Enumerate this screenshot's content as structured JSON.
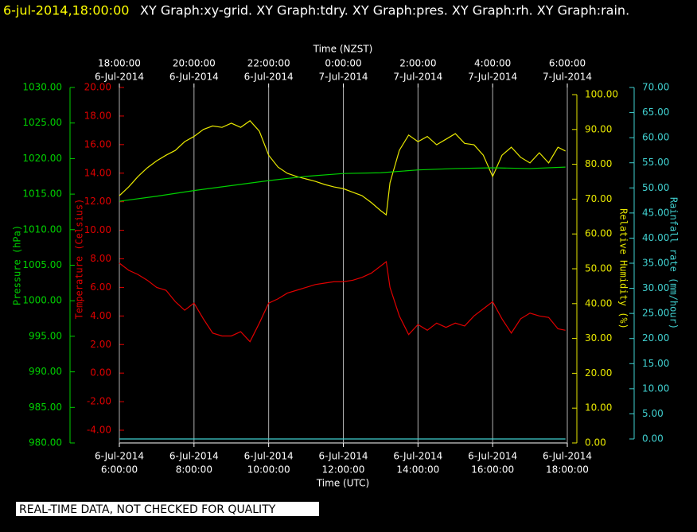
{
  "chart_data": {
    "type": "line",
    "title": "6-jul-2014,18:00:00",
    "subtitle": "XY Graph:xy-grid.  XY Graph:tdry.  XY Graph:pres.  XY Graph:rh.  XY Graph:rain.",
    "footer": "REAL-TIME DATA, NOT CHECKED FOR QUALITY",
    "xlabel": "Time (UTC)",
    "x2label": "Time (NZST)",
    "xlim": [
      6,
      18
    ],
    "xticks": [
      {
        "value": 6,
        "label": [
          "6-Jul-2014",
          "6:00:00"
        ]
      },
      {
        "value": 8,
        "label": [
          "6-Jul-2014",
          "8:00:00"
        ]
      },
      {
        "value": 10,
        "label": [
          "6-Jul-2014",
          "10:00:00"
        ]
      },
      {
        "value": 12,
        "label": [
          "6-Jul-2014",
          "12:00:00"
        ]
      },
      {
        "value": 14,
        "label": [
          "6-Jul-2014",
          "14:00:00"
        ]
      },
      {
        "value": 16,
        "label": [
          "6-Jul-2014",
          "16:00:00"
        ]
      },
      {
        "value": 18,
        "label": [
          "6-Jul-2014",
          "18:00:00"
        ]
      }
    ],
    "x2ticks": [
      {
        "value": 6,
        "label": [
          "18:00:00",
          "6-Jul-2014"
        ]
      },
      {
        "value": 8,
        "label": [
          "20:00:00",
          "6-Jul-2014"
        ]
      },
      {
        "value": 10,
        "label": [
          "22:00:00",
          "6-Jul-2014"
        ]
      },
      {
        "value": 12,
        "label": [
          "0:00:00",
          "7-Jul-2014"
        ]
      },
      {
        "value": 14,
        "label": [
          "2:00:00",
          "7-Jul-2014"
        ]
      },
      {
        "value": 16,
        "label": [
          "4:00:00",
          "7-Jul-2014"
        ]
      },
      {
        "value": 18,
        "label": [
          "6:00:00",
          "7-Jul-2014"
        ]
      }
    ],
    "grid": true,
    "axes": [
      {
        "key": "y",
        "label": "Pressure (hPa)",
        "color": "#00d000",
        "lim": [
          980,
          1030
        ],
        "ticks": [
          {
            "value": 980,
            "label": "980.00"
          },
          {
            "value": 985,
            "label": "985.00"
          },
          {
            "value": 990,
            "label": "990.00"
          },
          {
            "value": 995,
            "label": "995.00"
          },
          {
            "value": 1000,
            "label": "1000.00"
          },
          {
            "value": 1005,
            "label": "1005.00"
          },
          {
            "value": 1010,
            "label": "1010.00"
          },
          {
            "value": 1015,
            "label": "1015.00"
          },
          {
            "value": 1020,
            "label": "1020.00"
          },
          {
            "value": 1025,
            "label": "1025.00"
          },
          {
            "value": 1030,
            "label": "1030.00"
          }
        ]
      },
      {
        "key": "y2",
        "label": "Temperature (Celsius)",
        "color": "#e00000",
        "lim": [
          -4,
          20
        ],
        "ticks": [
          {
            "value": -4,
            "label": "-4.00"
          },
          {
            "value": -2,
            "label": "-2.00"
          },
          {
            "value": 0,
            "label": "0.00"
          },
          {
            "value": 2,
            "label": "2.00"
          },
          {
            "value": 4,
            "label": "4.00"
          },
          {
            "value": 6,
            "label": "6.00"
          },
          {
            "value": 8,
            "label": "8.00"
          },
          {
            "value": 10,
            "label": "10.00"
          },
          {
            "value": 12,
            "label": "12.00"
          },
          {
            "value": 14,
            "label": "14.00"
          },
          {
            "value": 16,
            "label": "16.00"
          },
          {
            "value": 18,
            "label": "18.00"
          },
          {
            "value": 20,
            "label": "20.00"
          }
        ]
      },
      {
        "key": "y3",
        "label": "Relative Humidity (%)",
        "color": "#e8e800",
        "lim": [
          0,
          100
        ],
        "ticks": [
          {
            "value": 0,
            "label": "0.00"
          },
          {
            "value": 10,
            "label": "10.00"
          },
          {
            "value": 20,
            "label": "20.00"
          },
          {
            "value": 30,
            "label": "30.00"
          },
          {
            "value": 40,
            "label": "40.00"
          },
          {
            "value": 50,
            "label": "50.00"
          },
          {
            "value": 60,
            "label": "60.00"
          },
          {
            "value": 70,
            "label": "70.00"
          },
          {
            "value": 80,
            "label": "80.00"
          },
          {
            "value": 90,
            "label": "90.00"
          },
          {
            "value": 100,
            "label": "100.00"
          }
        ]
      },
      {
        "key": "y4",
        "label": "Rainfall rate (mm/hour)",
        "color": "#40d0d0",
        "lim": [
          0,
          70
        ],
        "ticks": [
          {
            "value": 0,
            "label": "0.00"
          },
          {
            "value": 5,
            "label": "5.00"
          },
          {
            "value": 10,
            "label": "10.00"
          },
          {
            "value": 15,
            "label": "15.00"
          },
          {
            "value": 20,
            "label": "20.00"
          },
          {
            "value": 25,
            "label": "25.00"
          },
          {
            "value": 30,
            "label": "30.00"
          },
          {
            "value": 35,
            "label": "35.00"
          },
          {
            "value": 40,
            "label": "40.00"
          },
          {
            "value": 45,
            "label": "45.00"
          },
          {
            "value": 50,
            "label": "50.00"
          },
          {
            "value": 55,
            "label": "55.00"
          },
          {
            "value": 60,
            "label": "60.00"
          },
          {
            "value": 65,
            "label": "65.00"
          },
          {
            "value": 70,
            "label": "70.00"
          }
        ]
      }
    ],
    "series": [
      {
        "name": "tdry",
        "axis": "y2",
        "color": "#e00000",
        "x": [
          6,
          6.25,
          6.5,
          6.75,
          7,
          7.25,
          7.5,
          7.75,
          8,
          8.25,
          8.5,
          8.75,
          9,
          9.25,
          9.5,
          9.75,
          10,
          10.25,
          10.5,
          10.75,
          11,
          11.25,
          11.5,
          11.75,
          12,
          12.25,
          12.5,
          12.75,
          13,
          13.15,
          13.25,
          13.5,
          13.75,
          14,
          14.25,
          14.5,
          14.75,
          15,
          15.25,
          15.5,
          15.75,
          16,
          16.25,
          16.5,
          16.75,
          17,
          17.25,
          17.5,
          17.75,
          17.95
        ],
        "values": [
          7.7,
          7.2,
          6.9,
          6.5,
          6.0,
          5.8,
          5.0,
          4.4,
          4.9,
          3.8,
          2.8,
          2.6,
          2.6,
          2.9,
          2.2,
          3.5,
          4.9,
          5.2,
          5.6,
          5.8,
          6.0,
          6.2,
          6.3,
          6.4,
          6.4,
          6.5,
          6.7,
          7.0,
          7.5,
          7.8,
          6.0,
          4.0,
          2.7,
          3.4,
          3.0,
          3.5,
          3.2,
          3.5,
          3.3,
          4.0,
          4.5,
          5.0,
          3.8,
          2.8,
          3.8,
          4.2,
          4.0,
          3.9,
          3.1,
          3.0
        ]
      },
      {
        "name": "rh",
        "axis": "y3",
        "color": "#e8e800",
        "x": [
          6,
          6.25,
          6.5,
          6.75,
          7,
          7.25,
          7.5,
          7.75,
          8,
          8.25,
          8.5,
          8.75,
          9,
          9.25,
          9.5,
          9.75,
          10,
          10.25,
          10.5,
          10.75,
          11,
          11.25,
          11.5,
          11.75,
          12,
          12.25,
          12.5,
          12.75,
          13,
          13.15,
          13.25,
          13.5,
          13.75,
          14,
          14.25,
          14.5,
          14.75,
          15,
          15.25,
          15.5,
          15.75,
          16,
          16.25,
          16.5,
          16.75,
          17,
          17.25,
          17.5,
          17.75,
          17.95
        ],
        "values": [
          71,
          73.5,
          76.5,
          79,
          81,
          82.6,
          84,
          86.5,
          88,
          90,
          91,
          90.6,
          91.8,
          90.6,
          92.5,
          89.5,
          82.6,
          79.2,
          77.4,
          76.5,
          75.8,
          75.1,
          74.2,
          73.5,
          73,
          72,
          71,
          69,
          66.7,
          65.5,
          74.7,
          84,
          88.4,
          86.5,
          88,
          85.6,
          87.2,
          88.8,
          86,
          85.6,
          82.6,
          76.5,
          82.6,
          84.9,
          82,
          80.4,
          83.3,
          80.4,
          84.9,
          83.8
        ]
      },
      {
        "name": "pres",
        "axis": "y",
        "color": "#00d000",
        "x": [
          6,
          7,
          8,
          9,
          10,
          11,
          12,
          13,
          14,
          15,
          16,
          17,
          17.95
        ],
        "values": [
          1014.0,
          1014.7,
          1015.5,
          1016.2,
          1016.9,
          1017.5,
          1017.9,
          1018.0,
          1018.4,
          1018.6,
          1018.7,
          1018.6,
          1018.8
        ]
      },
      {
        "name": "rain",
        "axis": "y4",
        "color": "#40d0d0",
        "x": [
          6,
          17.95
        ],
        "values": [
          0,
          0
        ]
      }
    ]
  }
}
